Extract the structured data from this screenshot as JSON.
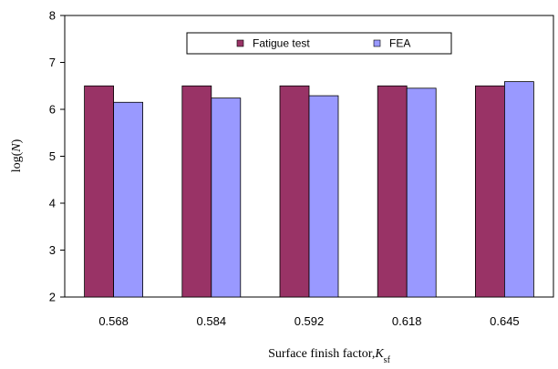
{
  "chart_data": {
    "type": "bar",
    "categories": [
      "0.568",
      "0.584",
      "0.592",
      "0.618",
      "0.645"
    ],
    "series": [
      {
        "name": "Fatigue test",
        "values": [
          6.5,
          6.5,
          6.5,
          6.5,
          6.5
        ],
        "color": "#993366"
      },
      {
        "name": "FEA",
        "values": [
          6.15,
          6.24,
          6.29,
          6.45,
          6.59
        ],
        "color": "#9999ff"
      }
    ],
    "title": "",
    "xlabel": {
      "main": "Surface finish factor,",
      "var": "K",
      "sub": "sf"
    },
    "ylabel": {
      "pre": "log(",
      "var": "N",
      "post": ")"
    },
    "ylim": [
      2,
      8
    ],
    "yticks": [
      "2",
      "3",
      "4",
      "5",
      "6",
      "7",
      "8"
    ],
    "legend_position": "top-center",
    "grid": false
  }
}
